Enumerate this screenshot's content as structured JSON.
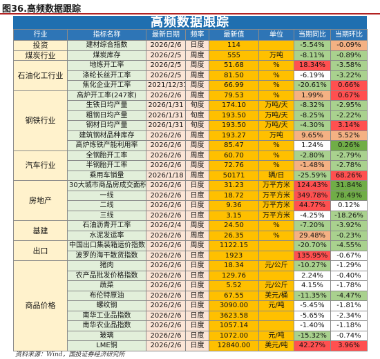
{
  "figure_title": "图36.高频数据跟踪",
  "table_title": "高频数据跟踪",
  "headers": [
    "行业",
    "指标名称",
    "最新日期",
    "频率",
    "最新值",
    "单位",
    "当期同比",
    "当期环比"
  ],
  "rows": [
    {
      "cat": "投资",
      "name": "建材综合指数",
      "date": "2026/2/6",
      "freq": "日度",
      "value": "114",
      "unit": "",
      "yoy": "-5.54%",
      "yoy_c": "lg",
      "mom": "-0.09%",
      "mom_c": "pk"
    },
    {
      "cat": "煤炭行业",
      "name": "煤炭库存",
      "date": "2026/2/5",
      "freq": "周度",
      "value": "555",
      "unit": "万吨",
      "yoy": "-8.11%",
      "yoy_c": "lg",
      "mom": "-0.89%",
      "mom_c": "lg"
    },
    {
      "cat": "石油化工行业",
      "name": "地炼开工率",
      "date": "2026/2/5",
      "freq": "周度",
      "value": "51.68",
      "unit": "%",
      "yoy": "18.34%",
      "yoy_c": "r",
      "mom": "-3.58%",
      "mom_c": "lg"
    },
    {
      "cat": "",
      "name": "涤纶长丝开工率",
      "date": "2026/2/5",
      "freq": "周度",
      "value": "81.50",
      "unit": "%",
      "yoy": "-6.19%",
      "yoy_c": "w",
      "mom": "-3.22%",
      "mom_c": "lg"
    },
    {
      "cat": "",
      "name": "焦化企业开工率",
      "date": "2021/12/31",
      "freq": "周度",
      "value": "66.99",
      "unit": "%",
      "yoy": "-20.61%",
      "yoy_c": "lg",
      "mom": "0.66%",
      "mom_c": "r"
    },
    {
      "cat": "钢铁行业",
      "name": "高炉开工率(247家)",
      "date": "2026/2/6",
      "freq": "周度",
      "value": "79.53",
      "unit": "%",
      "yoy": "1.99%",
      "yoy_c": "pk",
      "mom": "0.67%",
      "mom_c": "r"
    },
    {
      "cat": "",
      "name": "生铁日均产量",
      "date": "2026/1/31",
      "freq": "旬度",
      "value": "174.10",
      "unit": "万吨/天",
      "yoy": "-8.32%",
      "yoy_c": "lg",
      "mom": "-2.95%",
      "mom_c": "lg"
    },
    {
      "cat": "",
      "name": "粗钢日均产量",
      "date": "2026/1/31",
      "freq": "旬度",
      "value": "193.50",
      "unit": "万吨/天",
      "yoy": "-8.25%",
      "yoy_c": "lg",
      "mom": "-2.22%",
      "mom_c": "lg"
    },
    {
      "cat": "",
      "name": "钢材日均产量",
      "date": "2026/1/31",
      "freq": "旬度",
      "value": "193.50",
      "unit": "万吨/天",
      "yoy": "-4.30%",
      "yoy_c": "lg",
      "mom": "3.14%",
      "mom_c": "r"
    },
    {
      "cat": "",
      "name": "建筑钢材品种库存",
      "date": "2026/2/6",
      "freq": "周度",
      "value": "193.27",
      "unit": "万吨",
      "yoy": "9.65%",
      "yoy_c": "pk",
      "mom": "5.52%",
      "mom_c": "pk"
    },
    {
      "cat": "",
      "name": "高炉炼铁产能利用率",
      "date": "2026/2/6",
      "freq": "周度",
      "value": "85.47",
      "unit": "%",
      "yoy": "1.24%",
      "yoy_c": "w",
      "mom": "0.26%",
      "mom_c": "g"
    },
    {
      "cat": "汽车行业",
      "name": "全钢胎开工率",
      "date": "2026/2/6",
      "freq": "周度",
      "value": "60.70",
      "unit": "%",
      "yoy": "-2.80%",
      "yoy_c": "lg",
      "mom": "-2.79%",
      "mom_c": "lg"
    },
    {
      "cat": "",
      "name": "半钢胎开工率",
      "date": "2026/2/6",
      "freq": "周度",
      "value": "72.76",
      "unit": "%",
      "yoy": "-1.48%",
      "yoy_c": "pk",
      "mom": "-2.78%",
      "mom_c": "lg"
    },
    {
      "cat": "",
      "name": "乘用车销量",
      "date": "2026/1/18",
      "freq": "周度",
      "value": "50171",
      "unit": "辆/日",
      "yoy": "-25.59%",
      "yoy_c": "lg",
      "mom": "68.26%",
      "mom_c": "r"
    },
    {
      "cat": "房地产",
      "name": "30大城市商品房成交面积",
      "date": "2026/2/6",
      "freq": "日度",
      "value": "31.23",
      "unit": "万平方米",
      "yoy": "124.43%",
      "yoy_c": "r",
      "mom": "31.84%",
      "mom_c": "g"
    },
    {
      "cat": "",
      "name": "一线",
      "date": "2026/2/6",
      "freq": "日度",
      "value": "18.72",
      "unit": "万平方米",
      "yoy": "349.78%",
      "yoy_c": "r",
      "mom": "78.49%",
      "mom_c": "g"
    },
    {
      "cat": "",
      "name": "二线",
      "date": "2026/2/6",
      "freq": "日度",
      "value": "9.36",
      "unit": "万平方米",
      "yoy": "44.77%",
      "yoy_c": "r",
      "mom": "0.12%",
      "mom_c": "w"
    },
    {
      "cat": "",
      "name": "三线",
      "date": "2026/2/6",
      "freq": "日度",
      "value": "3.15",
      "unit": "万平方米",
      "yoy": "-4.25%",
      "yoy_c": "w",
      "mom": "-18.26%",
      "mom_c": "lg"
    },
    {
      "cat": "基建",
      "name": "石油沥青开工率",
      "date": "2026/2/4",
      "freq": "周度",
      "value": "24.50",
      "unit": "%",
      "yoy": "-7.20%",
      "yoy_c": "lg",
      "mom": "-3.92%",
      "mom_c": "lg"
    },
    {
      "cat": "",
      "name": "水泥发运率",
      "date": "2026/2/6",
      "freq": "周度",
      "value": "26.35",
      "unit": "%",
      "yoy": "29.48%",
      "yoy_c": "pk",
      "mom": "-0.23%",
      "mom_c": "lg"
    },
    {
      "cat": "出口",
      "name": "中国出口集装箱运价指数",
      "date": "2026/2/6",
      "freq": "周度",
      "value": "1122.15",
      "unit": "",
      "yoy": "-20.70%",
      "yoy_c": "lg",
      "mom": "-4.55%",
      "mom_c": "lg"
    },
    {
      "cat": "",
      "name": "波罗的海干散货指数",
      "date": "2026/2/6",
      "freq": "日度",
      "value": "1923",
      "unit": "",
      "yoy": "135.95%",
      "yoy_c": "r",
      "mom": "-0.67%",
      "mom_c": "w"
    },
    {
      "cat": "商品价格",
      "name": "猪肉",
      "date": "2026/2/6",
      "freq": "日度",
      "value": "18.34",
      "unit": "元/公斤",
      "yoy": "-10.27%",
      "yoy_c": "lg",
      "mom": "-1.29%",
      "mom_c": "w"
    },
    {
      "cat": "",
      "name": "农产品批发价格指数",
      "date": "2026/2/6",
      "freq": "日度",
      "value": "129.76",
      "unit": "",
      "yoy": "2.24%",
      "yoy_c": "w",
      "mom": "-0.40%",
      "mom_c": "w"
    },
    {
      "cat": "",
      "name": "蔬菜",
      "date": "2026/2/6",
      "freq": "日度",
      "value": "5.52",
      "unit": "元/公斤",
      "yoy": "4.15%",
      "yoy_c": "w",
      "mom": "-1.78%",
      "mom_c": "w"
    },
    {
      "cat": "",
      "name": "布伦特原油",
      "date": "2026/2/6",
      "freq": "日度",
      "value": "67.55",
      "unit": "美元/桶",
      "yoy": "-11.35%",
      "yoy_c": "lg",
      "mom": "-4.47%",
      "mom_c": "lg"
    },
    {
      "cat": "",
      "name": "螺纹钢",
      "date": "2026/2/6",
      "freq": "日度",
      "value": "3090.00",
      "unit": "元/吨",
      "yoy": "-5.45%",
      "yoy_c": "w",
      "mom": "-1.81%",
      "mom_c": "w"
    },
    {
      "cat": "",
      "name": "南华工业品指数",
      "date": "2026/2/6",
      "freq": "日度",
      "value": "3623.58",
      "unit": "",
      "yoy": "-5.65%",
      "yoy_c": "w",
      "mom": "-2.34%",
      "mom_c": "w"
    },
    {
      "cat": "",
      "name": "南华农业品指数",
      "date": "2026/2/6",
      "freq": "日度",
      "value": "1057.14",
      "unit": "",
      "yoy": "-1.40%",
      "yoy_c": "w",
      "mom": "-1.18%",
      "mom_c": "w"
    },
    {
      "cat": "",
      "name": "玻璃",
      "date": "2026/2/6",
      "freq": "日度",
      "value": "1072.00",
      "unit": "元/吨",
      "yoy": "-15.32%",
      "yoy_c": "lg",
      "mom": "-0.74%",
      "mom_c": "w"
    },
    {
      "cat": "",
      "name": "LME铜",
      "date": "2026/2/6",
      "freq": "日度",
      "value": "12840.00",
      "unit": "美元/吨",
      "yoy": "42.27%",
      "yoy_c": "r",
      "mom": "3.96%",
      "mom_c": "r"
    }
  ],
  "source": "资料来源：Wind，国投证券经济研究所"
}
